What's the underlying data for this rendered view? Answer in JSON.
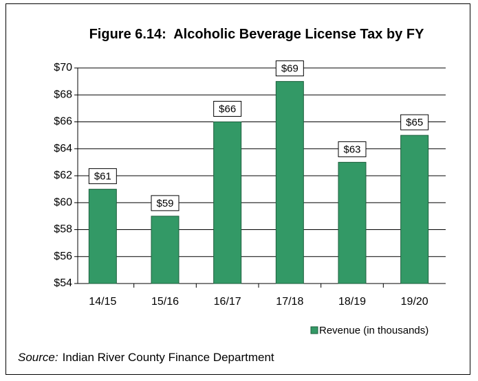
{
  "chart_data": {
    "type": "bar",
    "title": "Figure 6.14:  Alcoholic Beverage License Tax by FY",
    "categories": [
      "14/15",
      "15/16",
      "16/17",
      "17/18",
      "18/19",
      "19/20"
    ],
    "series": [
      {
        "name": "Revenue (in thousands)",
        "color": "#339966",
        "values": [
          61,
          59,
          66,
          69,
          63,
          65
        ],
        "value_labels": [
          "$61",
          "$59",
          "$66",
          "$69",
          "$63",
          "$65"
        ]
      }
    ],
    "ylim": [
      54,
      70
    ],
    "yticks": [
      {
        "value": 54,
        "label": "$54"
      },
      {
        "value": 56,
        "label": "$56"
      },
      {
        "value": 58,
        "label": "$58"
      },
      {
        "value": 60,
        "label": "$60"
      },
      {
        "value": 62,
        "label": "$62"
      },
      {
        "value": 64,
        "label": "$64"
      },
      {
        "value": 66,
        "label": "$66"
      },
      {
        "value": 68,
        "label": "$68"
      },
      {
        "value": 70,
        "label": "$70"
      }
    ],
    "grid": true,
    "legend": "bottom-right",
    "source": {
      "label": "Source:",
      "text": "Indian River County Finance Department"
    }
  }
}
